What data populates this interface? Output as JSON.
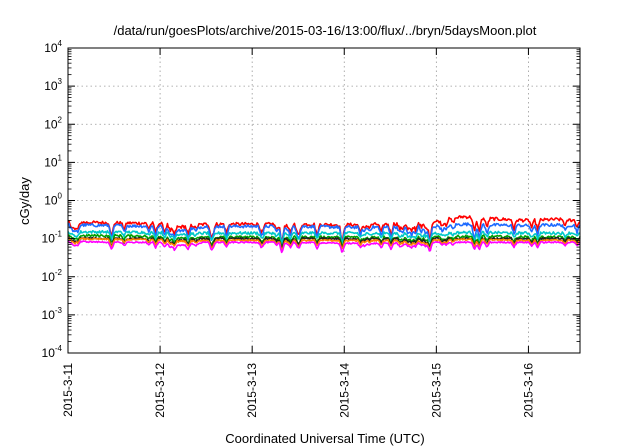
{
  "chart_data": {
    "type": "line",
    "title": "/data/run/goesPlots/archive/2015-03-16/13:00/flux/../bryn/5daysMoon.plot",
    "xlabel": "Coordinated Universal Time (UTC)",
    "ylabel": "cGy/day",
    "y_scale": "log",
    "ylim": [
      0.0001,
      10000
    ],
    "xlim_days": [
      0,
      5.56
    ],
    "x_ticks": [
      {
        "label": "2015-3-11",
        "day": 0
      },
      {
        "label": "2015-3-12",
        "day": 1
      },
      {
        "label": "2015-3-13",
        "day": 2
      },
      {
        "label": "2015-3-14",
        "day": 3
      },
      {
        "label": "2015-3-15",
        "day": 4
      },
      {
        "label": "2015-3-16",
        "day": 5
      }
    ],
    "y_ticks": [
      {
        "base": "10",
        "exp": "-4",
        "value": 0.0001
      },
      {
        "base": "10",
        "exp": "-3",
        "value": 0.001
      },
      {
        "base": "10",
        "exp": "-2",
        "value": 0.01
      },
      {
        "base": "10",
        "exp": "-1",
        "value": 0.1
      },
      {
        "base": "10",
        "exp": "0",
        "value": 1
      },
      {
        "base": "10",
        "exp": "1",
        "value": 10
      },
      {
        "base": "10",
        "exp": "2",
        "value": 100
      },
      {
        "base": "10",
        "exp": "3",
        "value": 1000
      },
      {
        "base": "10",
        "exp": "4",
        "value": 10000
      }
    ],
    "grid": true,
    "series": [
      {
        "color": "#ff0000",
        "x": [
          0,
          0.5,
          1,
          1.2,
          1.5,
          2,
          2.5,
          3,
          3.5,
          4,
          4.3,
          4.5,
          5,
          5.3,
          5.56
        ],
        "y": [
          0.27,
          0.26,
          0.25,
          0.2,
          0.24,
          0.24,
          0.24,
          0.23,
          0.24,
          0.28,
          0.38,
          0.34,
          0.3,
          0.32,
          0.3
        ]
      },
      {
        "color": "#1e6bff",
        "x": [
          0,
          0.5,
          1,
          1.2,
          1.5,
          2,
          2.5,
          3,
          3.5,
          4,
          4.3,
          4.5,
          5,
          5.3,
          5.56
        ],
        "y": [
          0.23,
          0.22,
          0.21,
          0.16,
          0.21,
          0.21,
          0.21,
          0.2,
          0.2,
          0.21,
          0.24,
          0.23,
          0.22,
          0.23,
          0.22
        ]
      },
      {
        "color": "#00c8c8",
        "x": [
          0,
          0.5,
          1,
          1.2,
          1.5,
          2,
          2.5,
          3,
          3.5,
          4,
          4.3,
          4.5,
          5,
          5.3,
          5.56
        ],
        "y": [
          0.15,
          0.15,
          0.145,
          0.13,
          0.14,
          0.14,
          0.14,
          0.14,
          0.14,
          0.14,
          0.145,
          0.145,
          0.14,
          0.14,
          0.14
        ]
      },
      {
        "color": "#00a000",
        "x": [
          0,
          0.5,
          1,
          1.2,
          1.5,
          2,
          2.5,
          3,
          3.5,
          4,
          4.3,
          4.5,
          5,
          5.3,
          5.56
        ],
        "y": [
          0.12,
          0.12,
          0.115,
          0.1,
          0.11,
          0.11,
          0.11,
          0.11,
          0.11,
          0.11,
          0.115,
          0.115,
          0.11,
          0.11,
          0.11
        ]
      },
      {
        "color": "#202020",
        "x": [
          0,
          0.5,
          1,
          1.2,
          1.5,
          2,
          2.5,
          3,
          3.5,
          4,
          4.3,
          4.5,
          5,
          5.3,
          5.56
        ],
        "y": [
          0.105,
          0.1,
          0.1,
          0.09,
          0.1,
          0.1,
          0.1,
          0.1,
          0.1,
          0.1,
          0.1,
          0.1,
          0.1,
          0.1,
          0.1
        ]
      },
      {
        "color": "#ff8000",
        "x": [
          0,
          0.5,
          1,
          1.2,
          1.5,
          2,
          2.5,
          3,
          3.5,
          4,
          4.3,
          4.5,
          5,
          5.3,
          5.56
        ],
        "y": [
          0.1,
          0.095,
          0.095,
          0.085,
          0.09,
          0.09,
          0.09,
          0.09,
          0.09,
          0.09,
          0.095,
          0.095,
          0.09,
          0.09,
          0.09
        ]
      },
      {
        "color": "#ff00ff",
        "x": [
          0,
          0.5,
          1,
          1.2,
          1.5,
          2,
          2.5,
          3,
          3.5,
          4,
          4.3,
          4.5,
          5,
          5.3,
          5.56
        ],
        "y": [
          0.085,
          0.08,
          0.08,
          0.065,
          0.08,
          0.08,
          0.08,
          0.075,
          0.075,
          0.08,
          0.08,
          0.08,
          0.08,
          0.08,
          0.08
        ]
      }
    ]
  }
}
